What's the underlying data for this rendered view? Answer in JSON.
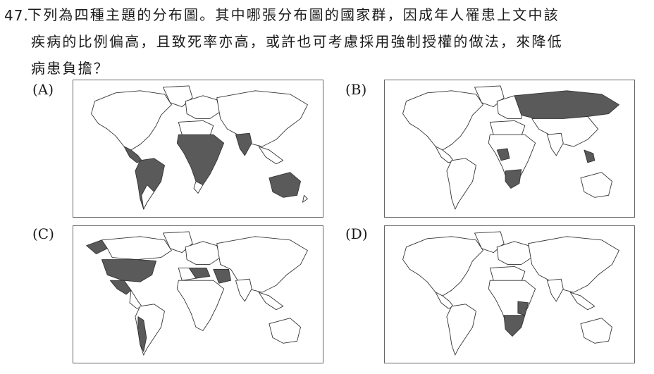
{
  "question": {
    "number": "47.",
    "line1": "下列為四種主題的分布圖。其中哪張分布圖的國家群，因成年人罹患上文中該",
    "line2": "疾病的比例偏高，且致死率亦高，或許也可考慮採用強制授權的做法，來降低",
    "line3": "病患負擔？"
  },
  "options": [
    {
      "label": "(A)",
      "highlight": [
        "central-america",
        "south-america-north",
        "central-africa",
        "south-asia",
        "australia"
      ]
    },
    {
      "label": "(B)",
      "highlight": [
        "russia",
        "southern-africa",
        "central-africa-west",
        "southeast-asia"
      ]
    },
    {
      "label": "(C)",
      "highlight": [
        "alaska",
        "usa",
        "mexico",
        "andes",
        "north-africa",
        "middle-east"
      ]
    },
    {
      "label": "(D)",
      "highlight": [
        "southern-africa",
        "east-africa-south"
      ]
    }
  ]
}
